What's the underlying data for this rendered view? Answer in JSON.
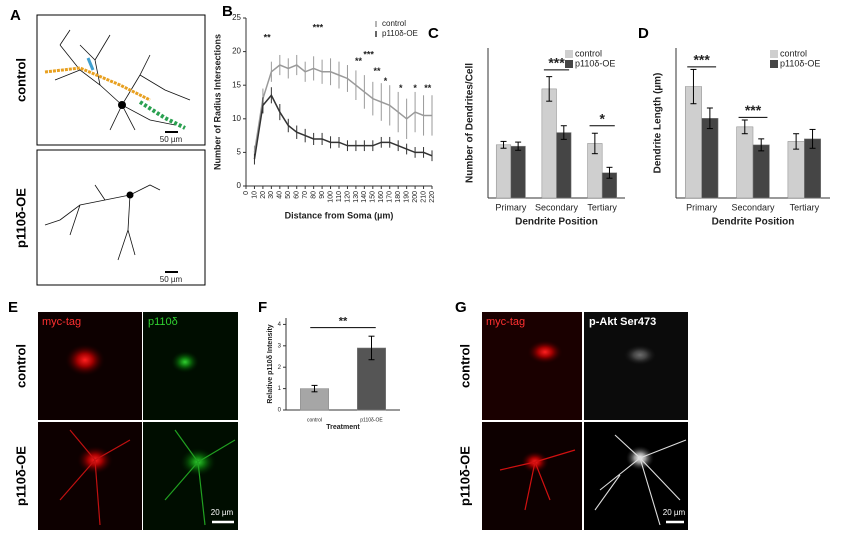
{
  "panel_labels": [
    "A",
    "B",
    "C",
    "D",
    "E",
    "F",
    "G"
  ],
  "panel_a": {
    "rows": [
      "control",
      "p110δ-OE"
    ],
    "scale_bar": "50 µm"
  },
  "panel_e": {
    "columns": [
      "myc-tag",
      "p110δ"
    ],
    "rows": [
      "control",
      "p110δ-OE"
    ],
    "scale_bar": "20 µm"
  },
  "panel_g": {
    "columns": [
      "myc-tag",
      "p-Akt Ser473"
    ],
    "rows": [
      "control",
      "p110δ-OE"
    ],
    "scale_bar": "20 µm"
  },
  "chart_data": [
    {
      "type": "line",
      "x_label": "Distance from Soma (µm)",
      "y_label": "Number of Radius Intersections",
      "x": [
        10,
        20,
        30,
        40,
        50,
        60,
        70,
        80,
        90,
        100,
        110,
        120,
        130,
        140,
        150,
        160,
        170,
        180,
        190,
        200,
        210,
        220
      ],
      "xlim": [
        0,
        220
      ],
      "xticks": [
        0,
        10,
        20,
        30,
        40,
        50,
        60,
        70,
        80,
        90,
        100,
        110,
        120,
        130,
        140,
        150,
        160,
        170,
        180,
        190,
        200,
        210,
        220
      ],
      "ylim": [
        0,
        25
      ],
      "yticks": [
        0,
        5,
        10,
        15,
        20,
        25
      ],
      "legend": "upper right",
      "series": [
        {
          "name": "control",
          "color": "#9a9a9a",
          "values": [
            5,
            13,
            17,
            18,
            17.5,
            18,
            17,
            17.5,
            17,
            17,
            16.5,
            16,
            15,
            14,
            13,
            12.5,
            12,
            11,
            10,
            11,
            10.5,
            10.5
          ],
          "errors": [
            1,
            1.5,
            1.5,
            1.5,
            1.5,
            1.5,
            1.5,
            1.8,
            1.8,
            2,
            2,
            2,
            2.2,
            2.5,
            2.5,
            2.8,
            3,
            3,
            3,
            3,
            3,
            3
          ]
        },
        {
          "name": "p110δ-OE",
          "color": "#333333",
          "values": [
            4,
            12,
            13.5,
            11,
            9,
            8,
            7.5,
            7,
            7,
            6.5,
            6.5,
            6,
            6,
            6,
            6,
            6.5,
            6.5,
            6,
            5.5,
            5,
            5,
            4.5
          ],
          "errors": [
            0.8,
            1.2,
            1.2,
            1.2,
            1,
            1,
            1,
            0.9,
            0.9,
            0.9,
            0.8,
            0.8,
            0.8,
            0.8,
            0.8,
            0.8,
            0.8,
            0.8,
            0.8,
            0.8,
            0.8,
            0.8
          ]
        }
      ],
      "annotations": [
        {
          "text": "**",
          "x": 25,
          "y": 22
        },
        {
          "text": "***",
          "x": 85,
          "y": 23.5
        },
        {
          "text": "**",
          "x": 133,
          "y": 18.5
        },
        {
          "text": "***",
          "x": 145,
          "y": 19.5
        },
        {
          "text": "**",
          "x": 155,
          "y": 17
        },
        {
          "text": "*",
          "x": 165,
          "y": 15.5
        },
        {
          "text": "*",
          "x": 183,
          "y": 14.5
        },
        {
          "text": "*",
          "x": 200,
          "y": 14.5
        },
        {
          "text": "**",
          "x": 215,
          "y": 14.5
        }
      ]
    },
    {
      "type": "bar",
      "x_label": "Dendrite Position",
      "y_label": "Number of Dendrites/Cell",
      "categories": [
        "Primary",
        "Secondary",
        "Tertiary"
      ],
      "ylim": [
        0,
        22
      ],
      "legend": "upper right",
      "series": [
        {
          "name": "control",
          "color": "#cfcfcf",
          "values": [
            7.8,
            16,
            8
          ],
          "errors": [
            0.5,
            1.8,
            1.5
          ]
        },
        {
          "name": "p110δ-OE",
          "color": "#454545",
          "values": [
            7.6,
            9.6,
            3.7
          ],
          "errors": [
            0.6,
            1,
            0.8
          ]
        }
      ],
      "annotations": [
        {
          "text": "***",
          "categories": [
            "Secondary"
          ],
          "y": 18.8
        },
        {
          "text": "*",
          "categories": [
            "Tertiary"
          ],
          "y": 10.6
        }
      ]
    },
    {
      "type": "bar",
      "x_label": "Dendrite Position",
      "y_label": "Dendrite Length (µm)",
      "categories": [
        "Primary",
        "Secondary",
        "Tertiary"
      ],
      "ylim": [
        0,
        175
      ],
      "legend": "upper right",
      "series": [
        {
          "name": "control",
          "color": "#cfcfcf",
          "values": [
            130,
            83,
            66
          ],
          "errors": [
            20,
            8,
            9
          ]
        },
        {
          "name": "p110δ-OE",
          "color": "#454545",
          "values": [
            93,
            62,
            69
          ],
          "errors": [
            12,
            7,
            11
          ]
        }
      ],
      "annotations": [
        {
          "text": "***",
          "categories": [
            "Primary"
          ],
          "y": 153
        },
        {
          "text": "***",
          "categories": [
            "Secondary"
          ],
          "y": 94
        }
      ]
    },
    {
      "type": "bar",
      "x_label": "Treatment",
      "y_label": "Relative p110δ Intensity",
      "categories": [
        "control",
        "p110δ-OE"
      ],
      "values": [
        1.0,
        2.9
      ],
      "errors": [
        0.15,
        0.55
      ],
      "colors": [
        "#a6a6a6",
        "#555555"
      ],
      "ylim": [
        0,
        4.3
      ],
      "yticks": [
        0,
        1,
        2,
        3,
        4
      ],
      "annotations": [
        {
          "text": "**",
          "categories": [
            "control",
            "p110δ-OE"
          ],
          "y": 3.85
        }
      ]
    }
  ]
}
